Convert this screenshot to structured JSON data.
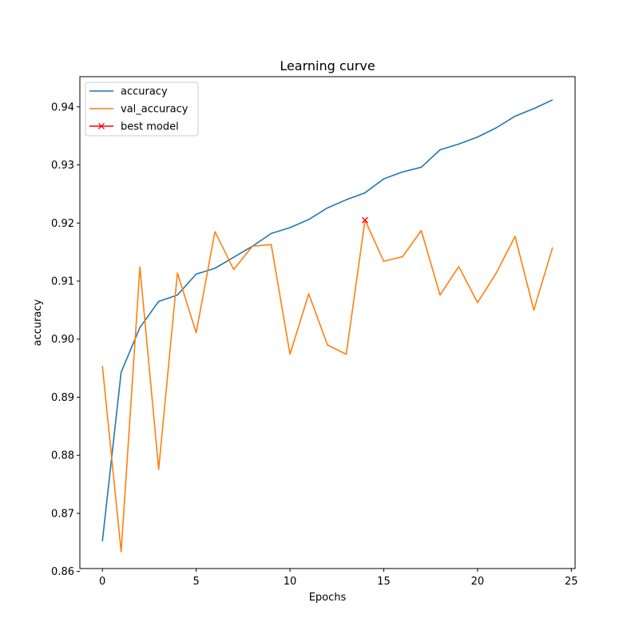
{
  "chart_data": {
    "type": "line",
    "title": "Learning curve",
    "xlabel": "Epochs",
    "ylabel": "accuracy",
    "xlim": [
      -1.2,
      25.2
    ],
    "ylim": [
      0.8605,
      0.9452
    ],
    "xticks": [
      0,
      5,
      10,
      15,
      20,
      25
    ],
    "xtick_labels": [
      "0",
      "5",
      "10",
      "15",
      "20",
      "25"
    ],
    "yticks": [
      0.86,
      0.87,
      0.88,
      0.89,
      0.9,
      0.91,
      0.92,
      0.93,
      0.94
    ],
    "ytick_labels": [
      "0.86",
      "0.87",
      "0.88",
      "0.89",
      "0.90",
      "0.91",
      "0.92",
      "0.93",
      "0.94"
    ],
    "grid": false,
    "legend_position": "top-left",
    "x": [
      0,
      1,
      2,
      3,
      4,
      5,
      6,
      7,
      8,
      9,
      10,
      11,
      12,
      13,
      14,
      15,
      16,
      17,
      18,
      19,
      20,
      21,
      22,
      23,
      24
    ],
    "series": [
      {
        "name": "accuracy",
        "color": "#1f77b4",
        "values": [
          0.8652,
          0.8943,
          0.902,
          0.9065,
          0.9076,
          0.9112,
          0.9122,
          0.9141,
          0.916,
          0.9182,
          0.9192,
          0.9206,
          0.9226,
          0.924,
          0.9252,
          0.9276,
          0.9288,
          0.9296,
          0.9326,
          0.9336,
          0.9348,
          0.9364,
          0.9384,
          0.9397,
          0.9412
        ]
      },
      {
        "name": "val_accuracy",
        "color": "#ff7f0e",
        "values": [
          0.8954,
          0.8634,
          0.9124,
          0.8776,
          0.9114,
          0.9011,
          0.9185,
          0.912,
          0.916,
          0.9163,
          0.8974,
          0.9078,
          0.899,
          0.8974,
          0.9205,
          0.9134,
          0.9142,
          0.9187,
          0.9076,
          0.9125,
          0.9063,
          0.9114,
          0.9177,
          0.905,
          0.9158
        ]
      }
    ],
    "markers": [
      {
        "name": "best model",
        "color": "#ff0000",
        "symbol": "x",
        "x": 14,
        "y": 0.9205
      }
    ]
  }
}
